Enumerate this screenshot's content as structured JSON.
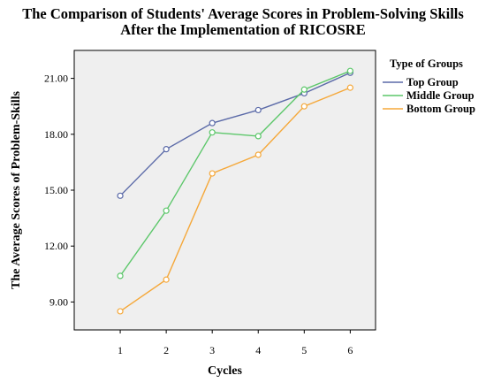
{
  "chart_data": {
    "type": "line",
    "title_line1": "The Comparison of Students' Average Scores in Problem-Solving Skills",
    "title_line2": "After the Implementation of RICOSRE",
    "xlabel": "Cycles",
    "ylabel": "The Average Scores of Problem-Skills",
    "x": [
      1,
      2,
      3,
      4,
      5,
      6
    ],
    "x_tick_labels": [
      "1",
      "2",
      "3",
      "4",
      "5",
      "6"
    ],
    "y_ticks": [
      9.0,
      12.0,
      15.0,
      18.0,
      21.0
    ],
    "y_tick_labels": [
      "9.00",
      "12.00",
      "15.00",
      "18.00",
      "21.00"
    ],
    "xlim": [
      0.0,
      6.55
    ],
    "ylim": [
      7.5,
      22.5
    ],
    "grid": false,
    "legend_title": "Type of Groups",
    "legend_position": "right",
    "series": [
      {
        "name": "Top Group",
        "color": "#5b6aa8",
        "values": [
          14.7,
          17.2,
          18.6,
          19.3,
          20.2,
          21.3
        ]
      },
      {
        "name": "Middle Group",
        "color": "#5cc76a",
        "values": [
          10.4,
          13.9,
          18.1,
          17.9,
          20.4,
          21.4
        ]
      },
      {
        "name": "Bottom Group",
        "color": "#f5a83a",
        "values": [
          8.5,
          10.2,
          15.9,
          16.9,
          19.5,
          20.5
        ]
      }
    ]
  }
}
